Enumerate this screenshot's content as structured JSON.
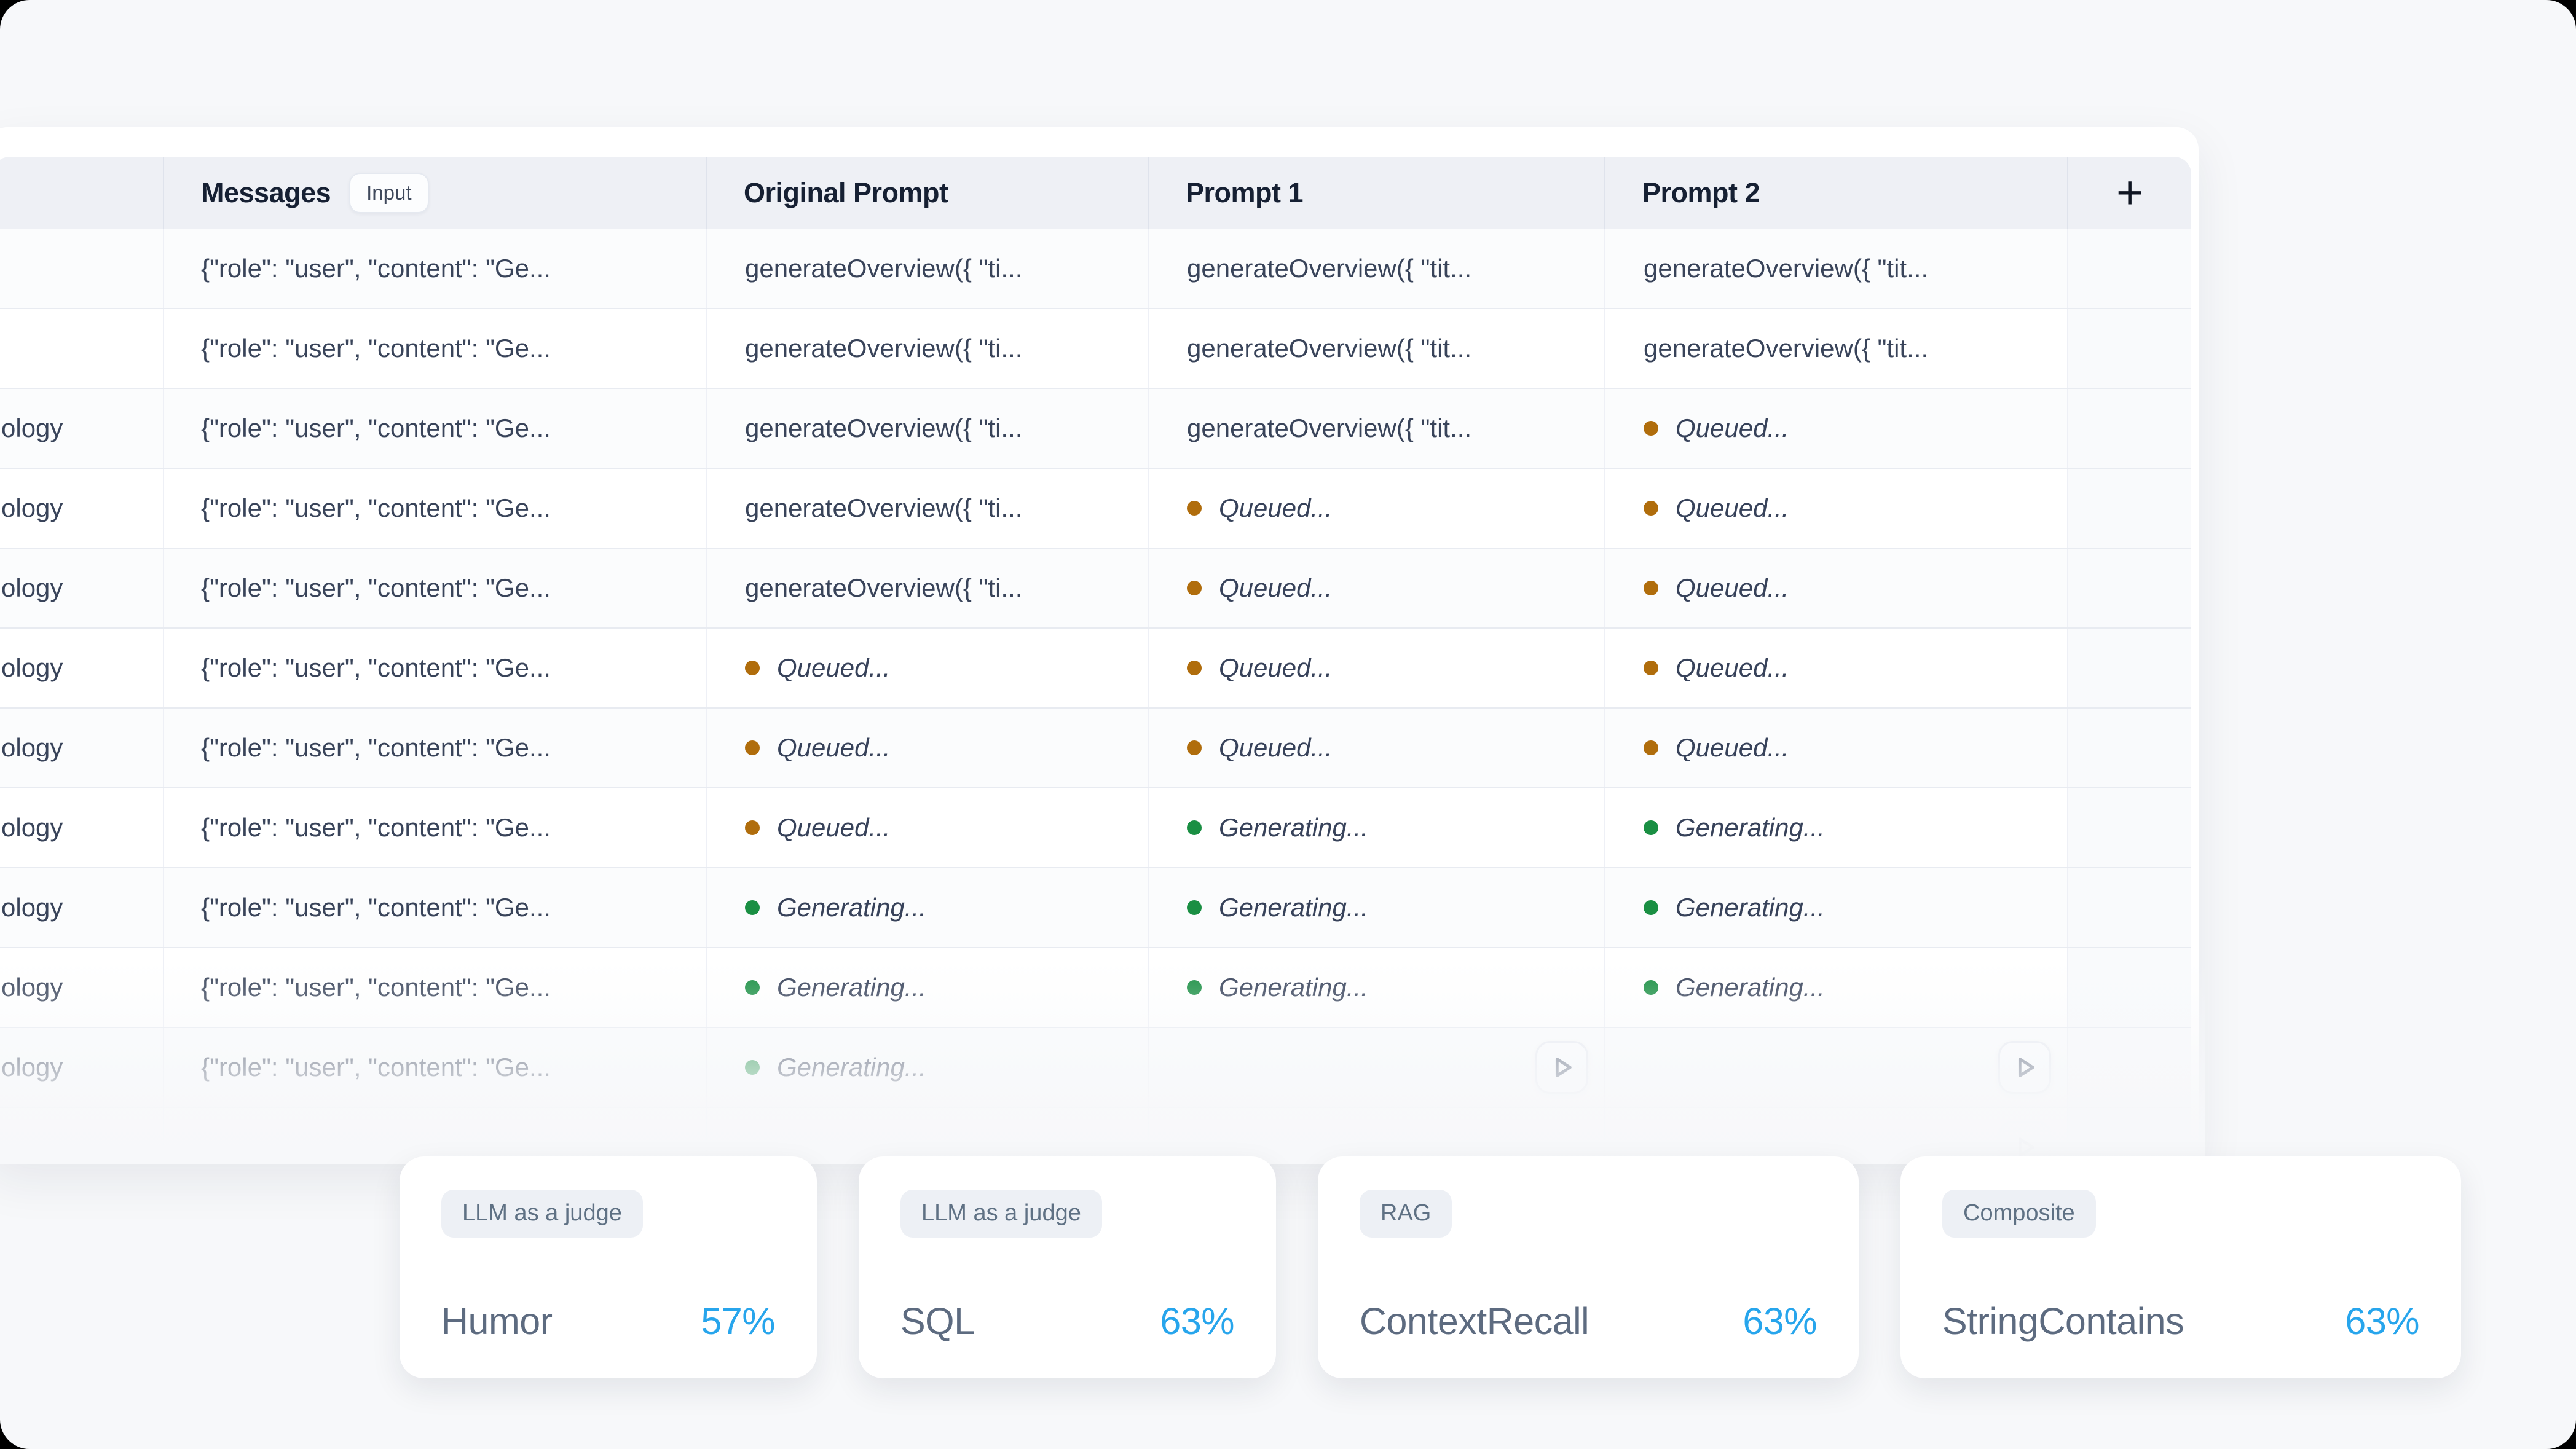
{
  "page": {
    "background": "#f7f8fa",
    "card_background": "#ffffff",
    "accent_blue": "#27a5ec"
  },
  "table": {
    "header": {
      "row_label": "",
      "messages_label": "Messages",
      "messages_badge": "Input",
      "original_label": "Original Prompt",
      "prompt1_label": "Prompt 1",
      "prompt2_label": "Prompt 2",
      "add_column_label": "+"
    },
    "texts": {
      "messages": "{\"role\": \"user\", \"content\": \"Ge...",
      "prompt_short": "generateOverview({ \"ti...",
      "prompt_long": "generateOverview({ \"tit...",
      "queued": "Queued...",
      "generating": "Generating..."
    },
    "status": {
      "queued_color": "#b06d0c",
      "generating_color": "#1a8f43"
    },
    "rows": [
      {
        "label": "",
        "cells": [
          "prompt_short",
          "prompt_long",
          "prompt_long"
        ]
      },
      {
        "label": "",
        "cells": [
          "prompt_short",
          "prompt_long",
          "prompt_long"
        ]
      },
      {
        "label": "ology",
        "cells": [
          "prompt_short",
          "prompt_long",
          "queued"
        ]
      },
      {
        "label": "ology",
        "cells": [
          "prompt_short",
          "queued",
          "queued"
        ]
      },
      {
        "label": "ology",
        "cells": [
          "prompt_short",
          "queued",
          "queued"
        ]
      },
      {
        "label": "ology",
        "cells": [
          "queued",
          "queued",
          "queued"
        ]
      },
      {
        "label": "ology",
        "cells": [
          "queued",
          "queued",
          "queued"
        ]
      },
      {
        "label": "ology",
        "cells": [
          "queued",
          "generating",
          "generating"
        ]
      },
      {
        "label": "ology",
        "cells": [
          "generating",
          "generating",
          "generating"
        ]
      },
      {
        "label": "ology",
        "cells": [
          "generating",
          "generating",
          "generating"
        ]
      },
      {
        "label": "ology",
        "cells": [
          "generating",
          "run",
          "run"
        ]
      },
      {
        "label": "",
        "cells": [
          "",
          "",
          "run"
        ],
        "partial": true
      }
    ]
  },
  "metrics": {
    "value_color": "#27a5ec",
    "cards": [
      {
        "badge": "LLM as a judge",
        "name": "Humor",
        "value": "57%"
      },
      {
        "badge": "LLM as a judge",
        "name": "SQL",
        "value": "63%"
      },
      {
        "badge": "RAG",
        "name": "ContextRecall",
        "value": "63%"
      },
      {
        "badge": "Composite",
        "name": "StringContains",
        "value": "63%"
      }
    ]
  }
}
